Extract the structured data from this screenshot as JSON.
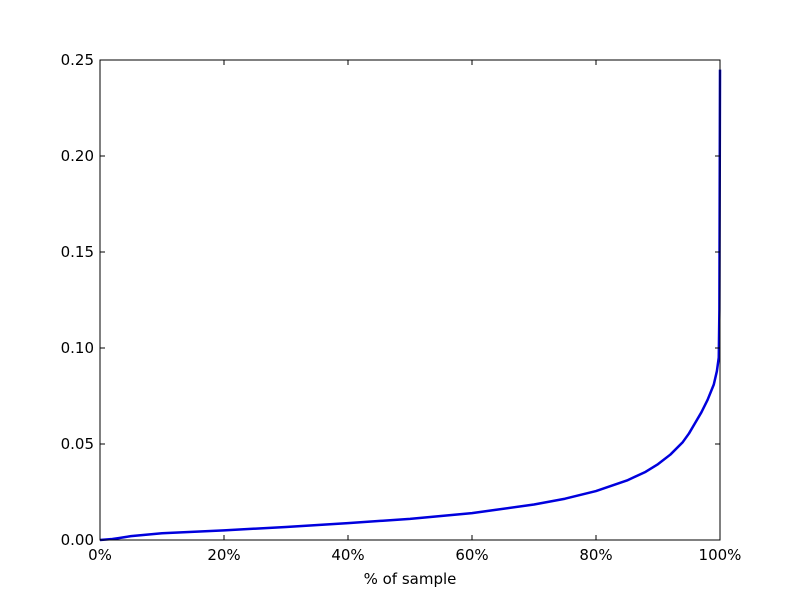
{
  "chart_data": {
    "type": "line",
    "title": "",
    "xlabel": "% of sample",
    "ylabel": "",
    "xlim": [
      0,
      100
    ],
    "ylim": [
      0,
      0.25
    ],
    "x_ticks": [
      {
        "value": 0,
        "label": "0%"
      },
      {
        "value": 20,
        "label": "20%"
      },
      {
        "value": 40,
        "label": "40%"
      },
      {
        "value": 60,
        "label": "60%"
      },
      {
        "value": 80,
        "label": "80%"
      },
      {
        "value": 100,
        "label": "100%"
      }
    ],
    "y_ticks": [
      {
        "value": 0,
        "label": "0.00"
      },
      {
        "value": 0.05,
        "label": "0.05"
      },
      {
        "value": 0.1,
        "label": "0.10"
      },
      {
        "value": 0.15,
        "label": "0.15"
      },
      {
        "value": 0.2,
        "label": "0.20"
      },
      {
        "value": 0.25,
        "label": "0.25"
      }
    ],
    "grid": false,
    "legend": "none",
    "series": [
      {
        "color": "#0000dd",
        "x": [
          0,
          2,
          3,
          4,
          5,
          10,
          20,
          30,
          40,
          50,
          60,
          70,
          75,
          80,
          85,
          88,
          90,
          92,
          94,
          95,
          96,
          97,
          98,
          99,
          99.5,
          99.8,
          99.9,
          100
        ],
        "y": [
          0,
          0.0005,
          0.001,
          0.0015,
          0.002,
          0.0035,
          0.005,
          0.0068,
          0.0088,
          0.011,
          0.014,
          0.0185,
          0.0215,
          0.0255,
          0.031,
          0.0355,
          0.0395,
          0.0445,
          0.051,
          0.0555,
          0.061,
          0.0665,
          0.073,
          0.081,
          0.088,
          0.095,
          0.12,
          0.245
        ]
      }
    ]
  }
}
